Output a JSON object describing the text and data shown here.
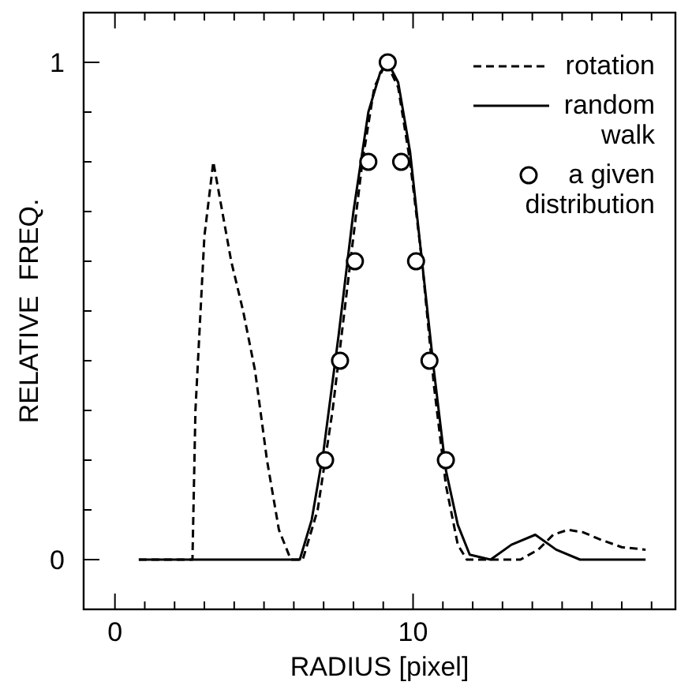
{
  "chart_data": {
    "type": "line",
    "xlabel": "RADIUS  [pixel]",
    "ylabel": "RELATIVE  FREQ.",
    "xlim": [
      -1.05,
      18.8
    ],
    "ylim": [
      -0.1,
      1.1
    ],
    "xticks": [
      0,
      {
        "value": 1,
        "label": null
      },
      {
        "value": 2,
        "label": null
      },
      {
        "value": 3,
        "label": null
      },
      {
        "value": 4,
        "label": null
      },
      {
        "value": 5,
        "label": null
      },
      {
        "value": 6,
        "label": null
      },
      {
        "value": 7,
        "label": null
      },
      {
        "value": 8,
        "label": null
      },
      {
        "value": 9,
        "label": null
      },
      10,
      {
        "value": 11,
        "label": null
      },
      {
        "value": 12,
        "label": null
      },
      {
        "value": 13,
        "label": null
      },
      {
        "value": 14,
        "label": null
      },
      {
        "value": 15,
        "label": null
      },
      {
        "value": 16,
        "label": null
      },
      {
        "value": 17,
        "label": null
      },
      {
        "value": 18,
        "label": null
      }
    ],
    "yticks": [
      0,
      {
        "value": 0.1,
        "label": null
      },
      {
        "value": 0.2,
        "label": null
      },
      {
        "value": 0.3,
        "label": null
      },
      {
        "value": 0.4,
        "label": null
      },
      {
        "value": 0.5,
        "label": null
      },
      {
        "value": 0.6,
        "label": null
      },
      {
        "value": 0.7,
        "label": null
      },
      {
        "value": 0.8,
        "label": null
      },
      {
        "value": 0.9,
        "label": null
      },
      1
    ],
    "grid": false,
    "legend": "top right",
    "series": [
      {
        "name": "rotation",
        "color": "#000000",
        "line_style": "dashed",
        "marker": "none",
        "x": [
          0.8,
          2.6,
          2.7,
          3.0,
          3.3,
          3.6,
          3.9,
          4.3,
          4.7,
          5.1,
          5.5,
          5.9,
          6.3,
          6.8,
          7.3,
          7.8,
          8.3,
          8.7,
          9.1,
          9.5,
          9.9,
          10.3,
          10.7,
          11.1,
          11.5,
          11.8,
          12.5,
          13.6,
          14.2,
          14.7,
          15.2,
          15.7,
          16.3,
          17.0,
          17.8
        ],
        "values": [
          0,
          0,
          0.3,
          0.65,
          0.8,
          0.7,
          0.6,
          0.5,
          0.38,
          0.2,
          0.06,
          0,
          0,
          0.1,
          0.3,
          0.55,
          0.8,
          0.95,
          1.0,
          0.95,
          0.8,
          0.6,
          0.35,
          0.15,
          0.03,
          0,
          0,
          0,
          0.02,
          0.05,
          0.06,
          0.055,
          0.04,
          0.025,
          0.02
        ]
      },
      {
        "name": "random walk",
        "color": "#000000",
        "line_style": "solid",
        "marker": "none",
        "x": [
          0.8,
          6.2,
          6.6,
          7.0,
          7.5,
          8.0,
          8.5,
          8.9,
          9.15,
          9.5,
          9.9,
          10.3,
          10.7,
          11.1,
          11.5,
          11.9,
          12.6,
          13.3,
          14.1,
          14.8,
          15.6,
          17.8
        ],
        "values": [
          0,
          0,
          0.08,
          0.22,
          0.45,
          0.7,
          0.9,
          0.98,
          1.0,
          0.96,
          0.82,
          0.6,
          0.38,
          0.18,
          0.07,
          0.01,
          0,
          0.03,
          0.05,
          0.02,
          0,
          0
        ]
      },
      {
        "name": "a given distribution",
        "type": "scatter",
        "color": "#000000",
        "marker": "circle",
        "x": [
          7.05,
          7.55,
          8.05,
          8.5,
          9.15,
          9.6,
          10.1,
          10.55,
          11.1
        ],
        "values": [
          0.2,
          0.4,
          0.6,
          0.8,
          1.0,
          0.8,
          0.6,
          0.4,
          0.2
        ]
      }
    ]
  }
}
